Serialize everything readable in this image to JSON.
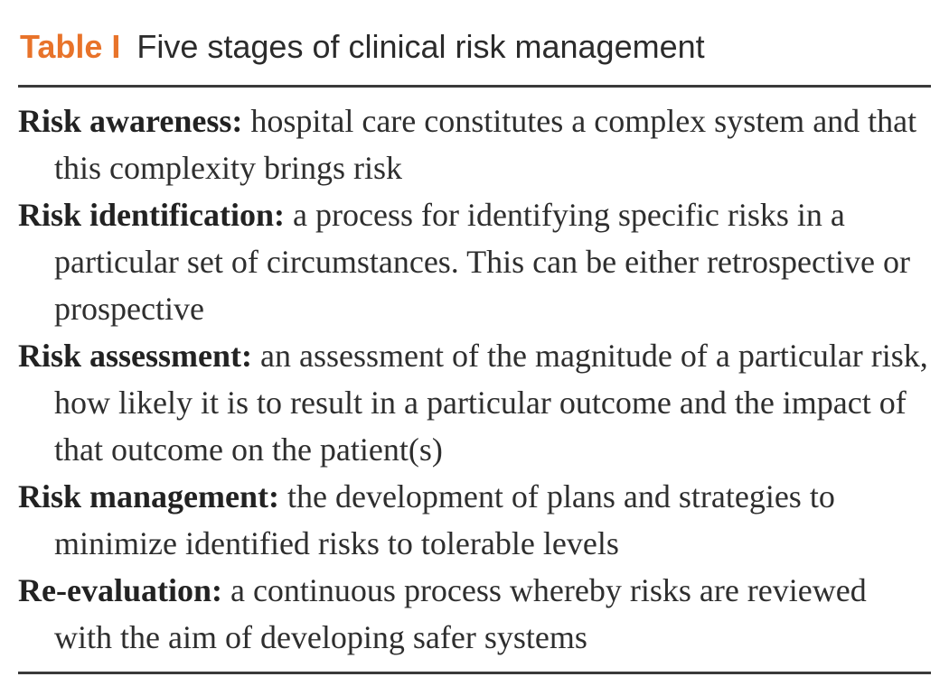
{
  "table": {
    "label": "Table I",
    "title": "Five stages of clinical risk management",
    "colors": {
      "label": "#e8732a",
      "text": "#2e2e2e",
      "rule": "#3a3a3a"
    },
    "entries": [
      {
        "term": "Risk awareness:",
        "text": "hospital care constitutes a complex system and that this complexity brings risk"
      },
      {
        "term": "Risk identification:",
        "text": "a process for identifying specific risks in a particular set of circumstances. This can be either retrospective or prospective"
      },
      {
        "term": "Risk assessment:",
        "text": "an assessment of the magnitude of a particular risk, how likely it is to result in a particular outcome and the impact of that outcome on the patient(s)"
      },
      {
        "term": "Risk management:",
        "text": "the development of plans and strategies to minimize identified risks to tolerable levels"
      },
      {
        "term": "Re-evaluation:",
        "text": "a continuous process whereby risks are reviewed with the aim of developing safer systems"
      }
    ]
  }
}
